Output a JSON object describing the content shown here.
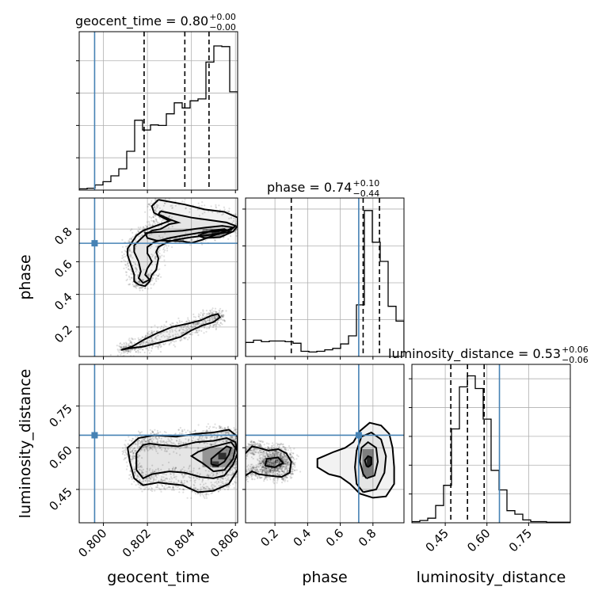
{
  "chart_data": {
    "type": "corner",
    "parameters": [
      "geocent_time",
      "phase",
      "luminosity_distance"
    ],
    "xlabels": [
      "geocent_time",
      "phase",
      "luminosity_distance"
    ],
    "ylabels": [
      "",
      "phase",
      "luminosity_distance"
    ],
    "titles": [
      {
        "name": "geocent_time",
        "median": "0.80",
        "plus": "+0.00",
        "minus": "−0.00"
      },
      {
        "name": "phase",
        "median": "0.74",
        "plus": "+0.10",
        "minus": "−0.44"
      },
      {
        "name": "luminosity_distance",
        "median": "0.53",
        "plus": "+0.06",
        "minus": "−0.06"
      }
    ],
    "ranges": [
      [
        0.7989,
        0.8061
      ],
      [
        0.02,
        0.99
      ],
      [
        0.33,
        0.9
      ]
    ],
    "ticks": {
      "geocent_time": {
        "values": [
          0.8,
          0.802,
          0.804,
          0.806
        ],
        "labels": [
          "0.800",
          "0.802",
          "0.804",
          "0.806"
        ]
      },
      "phase": {
        "values": [
          0.2,
          0.4,
          0.6,
          0.8
        ],
        "labels": [
          "0.2",
          "0.4",
          "0.6",
          "0.8"
        ]
      },
      "luminosity_distance": {
        "values": [
          0.45,
          0.6,
          0.75
        ],
        "labels": [
          "0.45",
          "0.60",
          "0.75"
        ]
      }
    },
    "truths": [
      0.7996,
      0.713,
      0.645
    ],
    "quantiles": [
      [
        0.80185,
        0.8037,
        0.8048
      ],
      [
        0.3,
        0.74,
        0.84
      ],
      [
        0.47,
        0.53,
        0.59
      ]
    ],
    "histograms": [
      {
        "param": "geocent_time",
        "edges_start": 0.7989,
        "bin_width": 0.00036,
        "counts": [
          2,
          3,
          8,
          13,
          22,
          33,
          60,
          108,
          93,
          101,
          100,
          118,
          135,
          127,
          138,
          141,
          198,
          223,
          222,
          152
        ]
      },
      {
        "param": "phase",
        "edges_start": 0.02,
        "bin_width": 0.0485,
        "counts": [
          19,
          22,
          20,
          21,
          21,
          20,
          18,
          7,
          6,
          7,
          9,
          11,
          17,
          28,
          70,
          198,
          155,
          129,
          68,
          48
        ]
      },
      {
        "param": "luminosity_distance",
        "edges_start": 0.33,
        "bin_width": 0.0285,
        "counts": [
          2,
          4,
          8,
          30,
          65,
          163,
          236,
          255,
          233,
          180,
          91,
          57,
          21,
          15,
          5,
          2,
          2,
          1,
          1,
          1
        ]
      }
    ],
    "hist_ymax": [
      245,
      215,
      275
    ],
    "contours": {
      "phase_vs_geocent_time": [
        [
          [
            0.8043,
            0.76
          ],
          [
            0.8049,
            0.79
          ],
          [
            0.8055,
            0.8
          ],
          [
            0.8058,
            0.78
          ],
          [
            0.8053,
            0.75
          ],
          [
            0.8046,
            0.745
          ],
          [
            0.8043,
            0.76
          ]
        ],
        [
          [
            0.8036,
            0.725
          ],
          [
            0.804,
            0.715
          ],
          [
            0.8045,
            0.735
          ],
          [
            0.805,
            0.76
          ],
          [
            0.8056,
            0.79
          ],
          [
            0.8059,
            0.81
          ],
          [
            0.8054,
            0.82
          ],
          [
            0.8047,
            0.81
          ],
          [
            0.8041,
            0.8
          ],
          [
            0.8036,
            0.79
          ],
          [
            0.803,
            0.785
          ],
          [
            0.8023,
            0.78
          ],
          [
            0.8019,
            0.775
          ],
          [
            0.802,
            0.745
          ],
          [
            0.8024,
            0.73
          ],
          [
            0.803,
            0.728
          ],
          [
            0.8036,
            0.725
          ]
        ],
        [
          [
            0.8026,
            0.91
          ],
          [
            0.8033,
            0.89
          ],
          [
            0.804,
            0.87
          ],
          [
            0.8048,
            0.855
          ],
          [
            0.8056,
            0.84
          ],
          [
            0.806,
            0.82
          ],
          [
            0.8058,
            0.795
          ],
          [
            0.8054,
            0.79
          ],
          [
            0.8045,
            0.78
          ],
          [
            0.8036,
            0.76
          ],
          [
            0.803,
            0.745
          ],
          [
            0.8023,
            0.72
          ],
          [
            0.802,
            0.69
          ],
          [
            0.802,
            0.65
          ],
          [
            0.8021,
            0.63
          ],
          [
            0.8022,
            0.6
          ],
          [
            0.802,
            0.56
          ],
          [
            0.8019,
            0.52
          ],
          [
            0.8021,
            0.49
          ],
          [
            0.8018,
            0.47
          ],
          [
            0.8016,
            0.5
          ],
          [
            0.8017,
            0.54
          ],
          [
            0.8016,
            0.6
          ],
          [
            0.8014,
            0.66
          ],
          [
            0.8014,
            0.7
          ],
          [
            0.8017,
            0.74
          ],
          [
            0.8019,
            0.765
          ],
          [
            0.8022,
            0.79
          ],
          [
            0.8026,
            0.8
          ],
          [
            0.803,
            0.83
          ],
          [
            0.8034,
            0.84
          ],
          [
            0.803,
            0.86
          ],
          [
            0.8025,
            0.89
          ],
          [
            0.8026,
            0.91
          ]
        ],
        [
          [
            0.8025,
            0.98
          ],
          [
            0.8037,
            0.95
          ],
          [
            0.8046,
            0.92
          ],
          [
            0.8055,
            0.905
          ],
          [
            0.8061,
            0.87
          ],
          [
            0.8061,
            0.82
          ],
          [
            0.8059,
            0.785
          ],
          [
            0.8049,
            0.765
          ],
          [
            0.804,
            0.75
          ],
          [
            0.8033,
            0.735
          ],
          [
            0.8029,
            0.72
          ],
          [
            0.8025,
            0.69
          ],
          [
            0.8024,
            0.66
          ],
          [
            0.8025,
            0.62
          ],
          [
            0.8024,
            0.55
          ],
          [
            0.8022,
            0.52
          ],
          [
            0.8021,
            0.48
          ],
          [
            0.8019,
            0.45
          ],
          [
            0.8016,
            0.46
          ],
          [
            0.8014,
            0.48
          ],
          [
            0.8014,
            0.52
          ],
          [
            0.8013,
            0.56
          ],
          [
            0.8012,
            0.6
          ],
          [
            0.8011,
            0.64
          ],
          [
            0.8011,
            0.68
          ],
          [
            0.8013,
            0.72
          ],
          [
            0.8015,
            0.76
          ],
          [
            0.8018,
            0.79
          ],
          [
            0.8022,
            0.81
          ],
          [
            0.8026,
            0.83
          ],
          [
            0.803,
            0.85
          ],
          [
            0.8027,
            0.87
          ],
          [
            0.8023,
            0.9
          ],
          [
            0.8022,
            0.94
          ],
          [
            0.8025,
            0.98
          ]
        ],
        [
          [
            0.8008,
            0.06
          ],
          [
            0.8013,
            0.08
          ],
          [
            0.8018,
            0.12
          ],
          [
            0.8024,
            0.16
          ],
          [
            0.8031,
            0.2
          ],
          [
            0.8038,
            0.22
          ],
          [
            0.8044,
            0.24
          ],
          [
            0.8049,
            0.27
          ],
          [
            0.8052,
            0.28
          ],
          [
            0.8053,
            0.26
          ],
          [
            0.805,
            0.23
          ],
          [
            0.8045,
            0.21
          ],
          [
            0.804,
            0.18
          ],
          [
            0.8035,
            0.14
          ],
          [
            0.803,
            0.12
          ],
          [
            0.8024,
            0.1
          ],
          [
            0.8018,
            0.08
          ],
          [
            0.8012,
            0.07
          ],
          [
            0.8008,
            0.06
          ]
        ]
      ],
      "luminosity_distance_vs_geocent_time": [
        [
          [
            0.8049,
            0.54
          ],
          [
            0.8052,
            0.535
          ],
          [
            0.8055,
            0.55
          ],
          [
            0.8057,
            0.575
          ],
          [
            0.8058,
            0.6
          ],
          [
            0.8056,
            0.605
          ],
          [
            0.8052,
            0.58
          ],
          [
            0.8049,
            0.56
          ],
          [
            0.8049,
            0.54
          ]
        ],
        [
          [
            0.8045,
            0.545
          ],
          [
            0.805,
            0.515
          ],
          [
            0.8055,
            0.52
          ],
          [
            0.8059,
            0.56
          ],
          [
            0.806,
            0.6
          ],
          [
            0.8058,
            0.62
          ],
          [
            0.8053,
            0.61
          ],
          [
            0.8048,
            0.6
          ],
          [
            0.8043,
            0.585
          ],
          [
            0.804,
            0.57
          ],
          [
            0.8043,
            0.555
          ],
          [
            0.8045,
            0.545
          ]
        ],
        [
          [
            0.8015,
            0.52
          ],
          [
            0.8015,
            0.58
          ],
          [
            0.8018,
            0.61
          ],
          [
            0.8021,
            0.615
          ],
          [
            0.8026,
            0.61
          ],
          [
            0.8034,
            0.605
          ],
          [
            0.8042,
            0.62
          ],
          [
            0.805,
            0.625
          ],
          [
            0.8056,
            0.635
          ],
          [
            0.806,
            0.62
          ],
          [
            0.8061,
            0.58
          ],
          [
            0.8059,
            0.54
          ],
          [
            0.8055,
            0.5
          ],
          [
            0.805,
            0.49
          ],
          [
            0.8044,
            0.495
          ],
          [
            0.8037,
            0.51
          ],
          [
            0.803,
            0.515
          ],
          [
            0.8022,
            0.505
          ],
          [
            0.8018,
            0.49
          ],
          [
            0.8015,
            0.52
          ]
        ],
        [
          [
            0.8012,
            0.55
          ],
          [
            0.8011,
            0.6
          ],
          [
            0.8016,
            0.635
          ],
          [
            0.8023,
            0.645
          ],
          [
            0.8033,
            0.64
          ],
          [
            0.8042,
            0.65
          ],
          [
            0.805,
            0.655
          ],
          [
            0.8057,
            0.665
          ],
          [
            0.8061,
            0.64
          ],
          [
            0.8061,
            0.58
          ],
          [
            0.8061,
            0.52
          ],
          [
            0.8057,
            0.47
          ],
          [
            0.805,
            0.445
          ],
          [
            0.8043,
            0.44
          ],
          [
            0.8036,
            0.465
          ],
          [
            0.803,
            0.47
          ],
          [
            0.8025,
            0.475
          ],
          [
            0.8018,
            0.465
          ],
          [
            0.8014,
            0.49
          ],
          [
            0.8012,
            0.55
          ]
        ]
      ],
      "luminosity_distance_vs_phase": [
        [
          [
            0.77,
            0.53
          ],
          [
            0.79,
            0.54
          ],
          [
            0.79,
            0.565
          ],
          [
            0.77,
            0.57
          ],
          [
            0.75,
            0.555
          ],
          [
            0.76,
            0.535
          ],
          [
            0.77,
            0.53
          ]
        ],
        [
          [
            0.76,
            0.49
          ],
          [
            0.81,
            0.5
          ],
          [
            0.83,
            0.55
          ],
          [
            0.82,
            0.6
          ],
          [
            0.77,
            0.62
          ],
          [
            0.73,
            0.6
          ],
          [
            0.72,
            0.55
          ],
          [
            0.74,
            0.505
          ],
          [
            0.76,
            0.49
          ]
        ],
        [
          [
            0.74,
            0.44
          ],
          [
            0.82,
            0.45
          ],
          [
            0.87,
            0.51
          ],
          [
            0.88,
            0.57
          ],
          [
            0.85,
            0.63
          ],
          [
            0.79,
            0.655
          ],
          [
            0.73,
            0.64
          ],
          [
            0.7,
            0.59
          ],
          [
            0.69,
            0.53
          ],
          [
            0.7,
            0.47
          ],
          [
            0.74,
            0.44
          ]
        ],
        [
          [
            0.53,
            0.505
          ],
          [
            0.6,
            0.495
          ],
          [
            0.66,
            0.47
          ],
          [
            0.72,
            0.435
          ],
          [
            0.8,
            0.42
          ],
          [
            0.88,
            0.425
          ],
          [
            0.93,
            0.47
          ],
          [
            0.93,
            0.53
          ],
          [
            0.92,
            0.6
          ],
          [
            0.9,
            0.65
          ],
          [
            0.85,
            0.68
          ],
          [
            0.78,
            0.69
          ],
          [
            0.72,
            0.66
          ],
          [
            0.68,
            0.62
          ],
          [
            0.63,
            0.6
          ],
          [
            0.56,
            0.585
          ],
          [
            0.5,
            0.57
          ],
          [
            0.46,
            0.56
          ],
          [
            0.46,
            0.53
          ],
          [
            0.53,
            0.505
          ]
        ],
        [
          [
            0.14,
            0.535
          ],
          [
            0.2,
            0.53
          ],
          [
            0.25,
            0.545
          ],
          [
            0.22,
            0.565
          ],
          [
            0.15,
            0.56
          ],
          [
            0.14,
            0.535
          ]
        ],
        [
          [
            0.02,
            0.58
          ],
          [
            0.06,
            0.605
          ],
          [
            0.1,
            0.6
          ],
          [
            0.16,
            0.59
          ],
          [
            0.22,
            0.595
          ],
          [
            0.27,
            0.58
          ],
          [
            0.3,
            0.55
          ],
          [
            0.29,
            0.51
          ],
          [
            0.24,
            0.495
          ],
          [
            0.16,
            0.5
          ],
          [
            0.1,
            0.505
          ],
          [
            0.06,
            0.515
          ],
          [
            0.02,
            0.5
          ]
        ]
      ]
    },
    "density_peaks": [
      {
        "panel": "phase_vs_geocent_time",
        "x": 0.805,
        "y": 0.775,
        "hw": 0.0005,
        "hh": 0.025,
        "shade": 0.55
      },
      {
        "panel": "phase_vs_geocent_time",
        "x": 0.8051,
        "y": 0.775,
        "hw": 0.00018,
        "hh": 0.012,
        "shade": 0.95
      },
      {
        "panel": "luminosity_distance_vs_geocent_time",
        "x": 0.8052,
        "y": 0.565,
        "hw": 0.0007,
        "hh": 0.035,
        "shade": 0.45
      },
      {
        "panel": "luminosity_distance_vs_geocent_time",
        "x": 0.8054,
        "y": 0.57,
        "hw": 0.00018,
        "hh": 0.012,
        "shade": 0.95
      },
      {
        "panel": "luminosity_distance_vs_geocent_time",
        "x": 0.8051,
        "y": 0.54,
        "hw": 0.00015,
        "hh": 0.011,
        "shade": 0.85
      },
      {
        "panel": "luminosity_distance_vs_phase",
        "x": 0.77,
        "y": 0.545,
        "hw": 0.035,
        "hh": 0.05,
        "shade": 0.6
      },
      {
        "panel": "luminosity_distance_vs_phase",
        "x": 0.775,
        "y": 0.55,
        "hw": 0.012,
        "hh": 0.018,
        "shade": 0.95
      }
    ]
  }
}
